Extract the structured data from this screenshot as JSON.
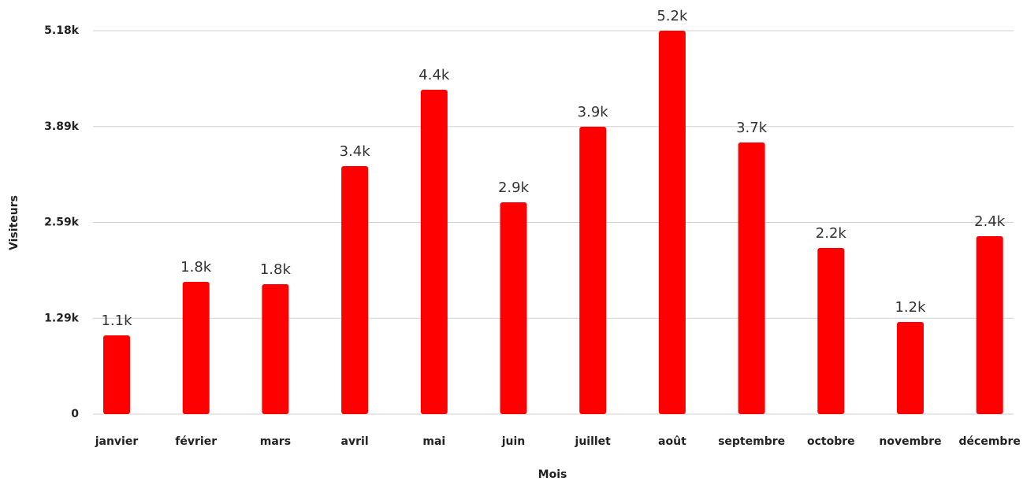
{
  "chart_data": {
    "type": "bar",
    "x_label": "Mois",
    "y_label": "Visiteurs",
    "categories": [
      "janvier",
      "février",
      "mars",
      "avril",
      "mai",
      "juin",
      "juillet",
      "août",
      "septembre",
      "octobre",
      "novembre",
      "décembre"
    ],
    "values": [
      1064,
      1787,
      1755,
      3350,
      4382,
      2861,
      3882,
      5180,
      3669,
      2244,
      1244,
      2404
    ],
    "value_labels": [
      "1.1k",
      "1.8k",
      "1.8k",
      "3.4k",
      "4.4k",
      "2.9k",
      "3.9k",
      "5.2k",
      "3.7k",
      "2.2k",
      "1.2k",
      "2.4k"
    ],
    "color": "#ff0000",
    "ylim": [
      0,
      5180
    ],
    "yticks": [
      0,
      {
        "value": 1295,
        "label": "1.29k"
      },
      {
        "value": 2590,
        "label": "2.59k"
      },
      {
        "value": 3885,
        "label": "3.89k"
      },
      {
        "value": 5180,
        "label": "5.18k"
      }
    ],
    "grid": true
  }
}
